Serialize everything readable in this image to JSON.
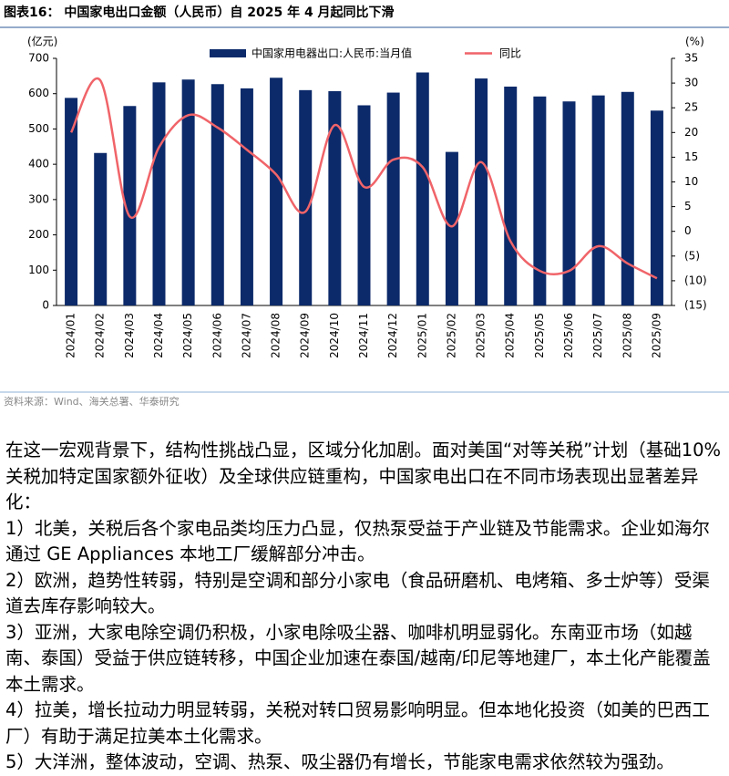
{
  "chart_data": {
    "type": "bar_line",
    "title": "图表16：  中国家电出口金额（人民币）自 2025 年 4 月起同比下滑",
    "y_label": "(亿元)",
    "y2_label": "(%)",
    "categories": [
      "2024/01",
      "2024/02",
      "2024/03",
      "2024/04",
      "2024/05",
      "2024/06",
      "2024/07",
      "2024/08",
      "2024/09",
      "2024/10",
      "2024/11",
      "2024/12",
      "2025/01",
      "2025/02",
      "2025/03",
      "2025/04",
      "2025/05",
      "2025/06",
      "2025/07",
      "2025/08",
      "2025/09"
    ],
    "series": [
      {
        "name": "中国家用电器出口:人民币:当月值",
        "type": "bar",
        "color": "#0c2a6a",
        "values": [
          588,
          432,
          565,
          632,
          640,
          627,
          615,
          645,
          610,
          607,
          567,
          603,
          660,
          435,
          643,
          620,
          592,
          578,
          595,
          605,
          552
        ]
      },
      {
        "name": "同比",
        "type": "line",
        "axis": "y2",
        "color": "#f06469",
        "values": [
          20,
          30.5,
          3,
          17,
          23.5,
          21,
          16.5,
          11.5,
          4,
          21.5,
          9,
          14.5,
          13,
          1,
          14,
          -2,
          -8,
          -8,
          -3,
          -6.5,
          -9.5
        ]
      }
    ],
    "ylim": [
      0,
      700
    ],
    "yticks": [
      0,
      100,
      200,
      300,
      400,
      500,
      600,
      700
    ],
    "y2lim": [
      -15,
      35
    ],
    "y2ticks": [
      {
        "value": -15,
        "label": "(15)"
      },
      {
        "value": -10,
        "label": "(10)"
      },
      {
        "value": -5,
        "label": "(5)"
      },
      0,
      5,
      10,
      15,
      20,
      25,
      30,
      35
    ],
    "source": "资料来源：Wind、海关总署、华泰研究"
  },
  "paragraphs": [
    "在这一宏观背景下，结构性挑战凸显，区域分化加剧。面对美国“对等关税”计划（基础10%关税加特定国家额外征收）及全球供应链重构，中国家电出口在不同市场表现出显著差异化：",
    "1）北美，关税后各个家电品类均压力凸显，仅热泵受益于产业链及节能需求。企业如海尔通过 GE Appliances 本地工厂缓解部分冲击。",
    "2）欧洲，趋势性转弱，特别是空调和部分小家电（食品研磨机、电烤箱、多士炉等）受渠道去库存影响较大。",
    "3）亚洲，大家电除空调仍积极，小家电除吸尘器、咖啡机明显弱化。东南亚市场（如越南、泰国）受益于供应链转移，中国企业加速在泰国/越南/印尼等地建厂，本土化产能覆盖本土需求。",
    "4）拉美，增长拉动力明显转弱，关税对转口贸易影响明显。但本地化投资（如美的巴西工厂）有助于满足拉美本土化需求。",
    "5）大洋洲，整体波动，空调、热泵、吸尘器仍有增长，节能家电需求依然较为强劲。"
  ]
}
